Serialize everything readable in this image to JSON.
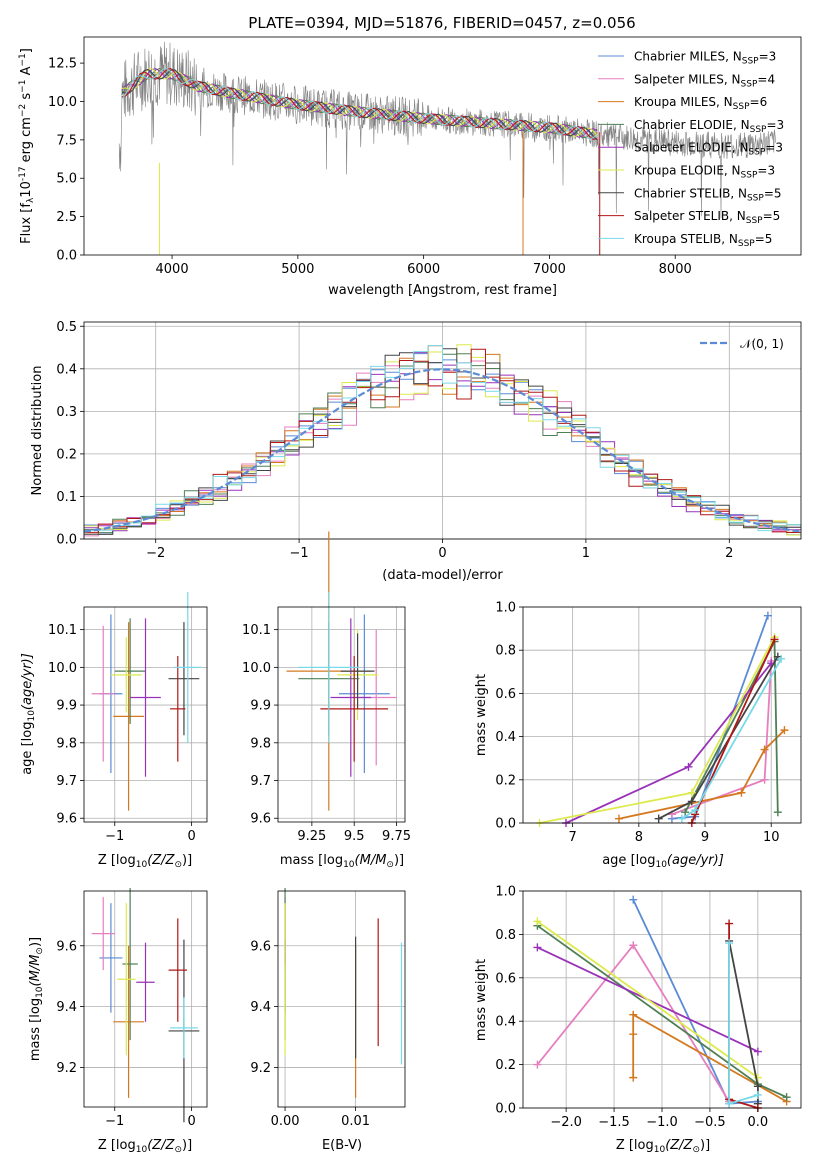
{
  "title": "PLATE=0394, MJD=51876, FIBERID=0457, z=0.056",
  "colors": {
    "chabrier_miles": "#5b8bd5",
    "salpeter_miles": "#e57fbf",
    "kroupa_miles": "#d4781f",
    "chabrier_elodie": "#4f7f55",
    "salpeter_elodie": "#9932b8",
    "kroupa_elodie": "#ddea4d",
    "chabrier_stelib": "#444444",
    "salpeter_stelib": "#b01818",
    "kroupa_stelib": "#78d9e8",
    "data": "#808080",
    "normal_curve": "#5b8bd5"
  },
  "legend": [
    {
      "label": "Chabrier MILES, N",
      "sub": "SSP",
      "tail": "=3",
      "color_key": "chabrier_miles"
    },
    {
      "label": "Salpeter MILES, N",
      "sub": "SSP",
      "tail": "=4",
      "color_key": "salpeter_miles"
    },
    {
      "label": "Kroupa MILES, N",
      "sub": "SSP",
      "tail": "=6",
      "color_key": "kroupa_miles"
    },
    {
      "label": "Chabrier ELODIE, N",
      "sub": "SSP",
      "tail": "=3",
      "color_key": "chabrier_elodie"
    },
    {
      "label": "Salpeter ELODIE, N",
      "sub": "SSP",
      "tail": "=3",
      "color_key": "salpeter_elodie"
    },
    {
      "label": "Kroupa ELODIE, N",
      "sub": "SSP",
      "tail": "=3",
      "color_key": "kroupa_elodie"
    },
    {
      "label": "Chabrier STELIB, N",
      "sub": "SSP",
      "tail": "=5",
      "color_key": "chabrier_stelib"
    },
    {
      "label": "Salpeter STELIB, N",
      "sub": "SSP",
      "tail": "=5",
      "color_key": "salpeter_stelib"
    },
    {
      "label": "Kroupa STELIB, N",
      "sub": "SSP",
      "tail": "=5",
      "color_key": "kroupa_stelib"
    }
  ],
  "hist_legend": "𝒩(0, 1)",
  "chart_data": [
    {
      "id": "spectrum",
      "type": "line",
      "xlabel": "wavelength [Angstrom, rest frame]",
      "ylabel": "Flux [f",
      "ylabel_sub": "λ",
      "ylabel_tail": "10",
      "ylabel_exp": "-17",
      "ylabel_end": " erg cm",
      "xlim": [
        3300,
        9000
      ],
      "ylim": [
        0,
        14.2
      ],
      "xticks": [
        4000,
        5000,
        6000,
        7000,
        8000
      ],
      "yticks": [
        0.0,
        2.5,
        5.0,
        7.5,
        10.0,
        12.5
      ],
      "continuum": [
        [
          3600,
          10.5
        ],
        [
          3800,
          11.8
        ],
        [
          4000,
          11.8
        ],
        [
          4200,
          11.0
        ],
        [
          4500,
          10.5
        ],
        [
          5000,
          9.8
        ],
        [
          5500,
          9.3
        ],
        [
          6000,
          8.9
        ],
        [
          6500,
          8.6
        ],
        [
          7000,
          8.3
        ],
        [
          7500,
          7.7
        ],
        [
          8000,
          7.3
        ],
        [
          8500,
          7.1
        ],
        [
          8700,
          7.3
        ]
      ],
      "data_range": [
        3580,
        8800
      ],
      "model_range": [
        3600,
        7400
      ]
    },
    {
      "id": "residual_hist",
      "type": "bar",
      "xlabel": "(data-model)/error",
      "ylabel": "Normed distribution",
      "xlim": [
        -2.5,
        2.5
      ],
      "ylim": [
        0,
        0.51
      ],
      "xticks": [
        -2,
        -1,
        0,
        1,
        2
      ],
      "yticks": [
        0.0,
        0.1,
        0.2,
        0.3,
        0.4,
        0.5
      ],
      "bin_width": 0.1,
      "normal": {
        "mu": 0,
        "sigma": 1
      }
    },
    {
      "id": "age_vs_Z",
      "type": "scatter",
      "xlabel": "Z [log",
      "xlabel_sub": "10",
      "xlabel_tail": "(Z/Z",
      "xlabel_end": ")]",
      "ylabel": "age  [log",
      "ylabel_sub": "10",
      "ylabel_tail": "(age/yr)]",
      "xlim": [
        -1.4,
        0.2
      ],
      "ylim": [
        9.59,
        10.16
      ],
      "xticks": [
        -1,
        0
      ],
      "yticks": [
        9.6,
        9.7,
        9.8,
        9.9,
        10.0,
        10.1
      ],
      "points": [
        {
          "key": "chabrier_miles",
          "x": -1.05,
          "xerr": 0.15,
          "y": 9.93,
          "yerr": 0.21
        },
        {
          "key": "salpeter_miles",
          "x": -1.15,
          "xerr": 0.15,
          "y": 9.93,
          "yerr": 0.18
        },
        {
          "key": "kroupa_miles",
          "x": -0.82,
          "xerr": 0.2,
          "y": 9.87,
          "yerr": 0.25
        },
        {
          "key": "chabrier_elodie",
          "x": -0.8,
          "xerr": 0.2,
          "y": 9.99,
          "yerr": 0.14
        },
        {
          "key": "salpeter_elodie",
          "x": -0.6,
          "xerr": 0.2,
          "y": 9.92,
          "yerr": 0.21
        },
        {
          "key": "kroupa_elodie",
          "x": -0.85,
          "xerr": 0.2,
          "y": 9.98,
          "yerr": 0.1
        },
        {
          "key": "chabrier_stelib",
          "x": -0.1,
          "xerr": 0.2,
          "y": 9.97,
          "yerr": 0.15
        },
        {
          "key": "salpeter_stelib",
          "x": -0.18,
          "xerr": 0.1,
          "y": 9.89,
          "yerr": 0.14
        },
        {
          "key": "kroupa_stelib",
          "x": -0.05,
          "xerr": 0.18,
          "y": 10.0,
          "yerr": 0.2
        }
      ]
    },
    {
      "id": "age_vs_mass",
      "type": "scatter",
      "xlabel": "mass [log",
      "xlabel_sub": "10",
      "xlabel_tail": "(M/M",
      "xlabel_end": ")]",
      "xlim": [
        9.05,
        9.8
      ],
      "ylim": [
        9.59,
        10.16
      ],
      "xticks": [
        9.25,
        9.5,
        9.75
      ],
      "yticks": [
        9.6,
        9.7,
        9.8,
        9.9,
        10.0,
        10.1
      ],
      "points": [
        {
          "key": "chabrier_miles",
          "x": 9.56,
          "xerr": 0.15,
          "y": 9.93,
          "yerr": 0.21
        },
        {
          "key": "salpeter_miles",
          "x": 9.63,
          "xerr": 0.12,
          "y": 9.92,
          "yerr": 0.18
        },
        {
          "key": "kroupa_miles",
          "x": 9.35,
          "xerr": 0.25,
          "y": 9.99,
          "yerr": 0.37
        },
        {
          "key": "chabrier_elodie",
          "x": 9.35,
          "xerr": 0.18,
          "y": 9.97,
          "yerr": 0.15
        },
        {
          "key": "salpeter_elodie",
          "x": 9.48,
          "xerr": 0.12,
          "y": 9.92,
          "yerr": 0.21
        },
        {
          "key": "kroupa_elodie",
          "x": 9.52,
          "xerr": 0.12,
          "y": 9.98,
          "yerr": 0.12
        },
        {
          "key": "chabrier_stelib",
          "x": 9.52,
          "xerr": 0.1,
          "y": 9.99,
          "yerr": 0.1
        },
        {
          "key": "salpeter_stelib",
          "x": 9.5,
          "xerr": 0.2,
          "y": 9.89,
          "yerr": 0.14
        },
        {
          "key": "kroupa_stelib",
          "x": 9.35,
          "xerr": 0.18,
          "y": 10.0,
          "yerr": 0.2
        }
      ]
    },
    {
      "id": "weight_vs_age",
      "type": "line",
      "xlabel": "age  [log",
      "xlabel_sub": "10",
      "xlabel_tail": "(age/yr)]",
      "ylabel": "mass weight",
      "xlim": [
        6.25,
        10.45
      ],
      "ylim": [
        0,
        1.0
      ],
      "xticks": [
        7,
        8,
        9,
        10
      ],
      "yticks": [
        0.0,
        0.2,
        0.4,
        0.6,
        0.8,
        1.0
      ],
      "series": [
        {
          "key": "chabrier_miles",
          "x": [
            8.5,
            8.85,
            9.95
          ],
          "y": [
            0.02,
            0.03,
            0.96
          ]
        },
        {
          "key": "salpeter_miles",
          "x": [
            8.5,
            9.9,
            10.0
          ],
          "y": [
            0.04,
            0.2,
            0.75
          ]
        },
        {
          "key": "kroupa_miles",
          "x": [
            7.7,
            9.55,
            9.9,
            10.2
          ],
          "y": [
            0.02,
            0.14,
            0.34,
            0.43
          ]
        },
        {
          "key": "chabrier_elodie",
          "x": [
            8.7,
            10.05,
            10.1
          ],
          "y": [
            0.05,
            0.84,
            0.05
          ]
        },
        {
          "key": "salpeter_elodie",
          "x": [
            6.9,
            8.75,
            10.0
          ],
          "y": [
            0.0,
            0.26,
            0.74
          ]
        },
        {
          "key": "kroupa_elodie",
          "x": [
            6.5,
            8.8,
            10.05
          ],
          "y": [
            0.0,
            0.14,
            0.86
          ]
        },
        {
          "key": "chabrier_stelib",
          "x": [
            8.3,
            8.8,
            10.1
          ],
          "y": [
            0.02,
            0.1,
            0.77
          ]
        },
        {
          "key": "salpeter_stelib",
          "x": [
            8.8,
            8.85,
            10.05
          ],
          "y": [
            0.0,
            0.04,
            0.85
          ]
        },
        {
          "key": "kroupa_stelib",
          "x": [
            8.65,
            8.85,
            10.15
          ],
          "y": [
            0.02,
            0.06,
            0.76
          ]
        }
      ]
    },
    {
      "id": "mass_vs_Z",
      "type": "scatter",
      "xlabel": "Z [log",
      "xlabel_sub": "10",
      "xlabel_tail": "(Z/Z",
      "xlabel_end": ")]",
      "ylabel": "mass [log",
      "ylabel_sub": "10",
      "ylabel_tail": "(M/M",
      "ylabel_end": ")]",
      "xlim": [
        -1.4,
        0.2
      ],
      "ylim": [
        9.07,
        9.78
      ],
      "xticks": [
        -1,
        0
      ],
      "yticks": [
        9.2,
        9.4,
        9.6
      ],
      "points": [
        {
          "key": "chabrier_miles",
          "x": -1.05,
          "xerr": 0.15,
          "y": 9.56,
          "yerr": 0.18
        },
        {
          "key": "salpeter_miles",
          "x": -1.15,
          "xerr": 0.15,
          "y": 9.64,
          "yerr": 0.12
        },
        {
          "key": "kroupa_miles",
          "x": -0.82,
          "xerr": 0.2,
          "y": 9.35,
          "yerr": 0.25
        },
        {
          "key": "chabrier_elodie",
          "x": -0.8,
          "xerr": 0.1,
          "y": 9.54,
          "yerr": 0.25
        },
        {
          "key": "salpeter_elodie",
          "x": -0.6,
          "xerr": 0.12,
          "y": 9.48,
          "yerr": 0.13
        },
        {
          "key": "kroupa_elodie",
          "x": -0.85,
          "xerr": 0.12,
          "y": 9.49,
          "yerr": 0.25
        },
        {
          "key": "chabrier_stelib",
          "x": -0.1,
          "xerr": 0.2,
          "y": 9.32,
          "yerr": 0.3
        },
        {
          "key": "salpeter_stelib",
          "x": -0.18,
          "xerr": 0.12,
          "y": 9.52,
          "yerr": 0.17
        },
        {
          "key": "kroupa_stelib",
          "x": -0.1,
          "xerr": 0.18,
          "y": 9.33,
          "yerr": 0.1
        }
      ]
    },
    {
      "id": "mass_vs_ebv",
      "type": "scatter",
      "xlabel": "E(B-V)",
      "xlim": [
        -0.001,
        0.017
      ],
      "ylim": [
        9.07,
        9.78
      ],
      "xticks": [
        0.0,
        0.01
      ],
      "xtick_labels": [
        "0.00",
        "0.01"
      ],
      "yticks": [
        9.2,
        9.4,
        9.6
      ],
      "points": [
        {
          "key": "chabrier_miles",
          "x": 0.0,
          "xerr": 0,
          "y": 9.56,
          "yerr": 0.18
        },
        {
          "key": "salpeter_miles",
          "x": 0.0,
          "xerr": 0,
          "y": 9.64,
          "yerr": 0.12
        },
        {
          "key": "kroupa_miles",
          "x": 0.01,
          "xerr": 0,
          "y": 9.35,
          "yerr": 0.25
        },
        {
          "key": "chabrier_elodie",
          "x": 0.0,
          "xerr": 0,
          "y": 9.54,
          "yerr": 0.25
        },
        {
          "key": "salpeter_elodie",
          "x": 0.0,
          "xerr": 0,
          "y": 9.58,
          "yerr": 0.04
        },
        {
          "key": "kroupa_elodie",
          "x": 0.0,
          "xerr": 0,
          "y": 9.49,
          "yerr": 0.25
        },
        {
          "key": "chabrier_stelib",
          "x": 0.01,
          "xerr": 0,
          "y": 9.43,
          "yerr": 0.2
        },
        {
          "key": "salpeter_stelib",
          "x": 0.0132,
          "xerr": 0,
          "y": 9.48,
          "yerr": 0.21
        },
        {
          "key": "kroupa_stelib",
          "x": 0.0165,
          "xerr": 0,
          "y": 9.41,
          "yerr": 0.2
        }
      ]
    },
    {
      "id": "weight_vs_Z",
      "type": "line",
      "xlabel": "Z [log",
      "xlabel_sub": "10",
      "xlabel_tail": "(Z/Z",
      "xlabel_end": ")]",
      "ylabel": "mass weight",
      "xlim": [
        -2.45,
        0.45
      ],
      "ylim": [
        0,
        1.0
      ],
      "xticks": [
        -2.0,
        -1.5,
        -1.0,
        -0.5,
        0.0
      ],
      "yticks": [
        0.0,
        0.2,
        0.4,
        0.6,
        0.8,
        1.0
      ],
      "series": [
        {
          "key": "chabrier_miles",
          "x": [
            -1.3,
            -0.3,
            0.0
          ],
          "y": [
            0.96,
            0.02,
            0.03
          ]
        },
        {
          "key": "salpeter_miles",
          "x": [
            -2.3,
            -1.3,
            -0.3
          ],
          "y": [
            0.2,
            0.75,
            0.03
          ]
        },
        {
          "key": "kroupa_miles",
          "x": [
            -1.3,
            -1.3,
            -1.3,
            0.3
          ],
          "y": [
            0.14,
            0.34,
            0.43,
            0.03
          ]
        },
        {
          "key": "chabrier_elodie",
          "x": [
            -2.3,
            0.0,
            0.3
          ],
          "y": [
            0.84,
            0.11,
            0.05
          ]
        },
        {
          "key": "salpeter_elodie",
          "x": [
            -2.3,
            0.0
          ],
          "y": [
            0.74,
            0.26
          ]
        },
        {
          "key": "kroupa_elodie",
          "x": [
            -2.3,
            0.0
          ],
          "y": [
            0.86,
            0.14
          ]
        },
        {
          "key": "chabrier_stelib",
          "x": [
            -0.3,
            0.0,
            0.0
          ],
          "y": [
            0.77,
            0.1,
            0.02
          ]
        },
        {
          "key": "salpeter_stelib",
          "x": [
            -0.3,
            -0.3,
            0.0
          ],
          "y": [
            0.85,
            0.04,
            0.0
          ]
        },
        {
          "key": "kroupa_stelib",
          "x": [
            -0.3,
            -0.3,
            0.0
          ],
          "y": [
            0.76,
            0.02,
            0.06
          ]
        }
      ]
    }
  ]
}
